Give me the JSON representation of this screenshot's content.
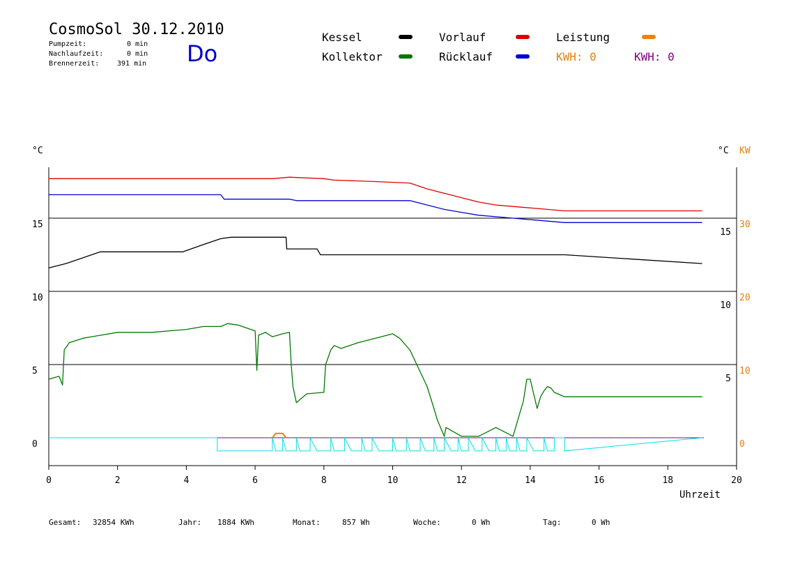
{
  "header": {
    "title": "CosmoSol 30.12.2010",
    "day": "Do",
    "stats": [
      {
        "label": "Pumpzeit:",
        "value": "0 min"
      },
      {
        "label": "Nachlaufzeit:",
        "value": "0 min"
      },
      {
        "label": "Brennerzeit:",
        "value": "391 min"
      }
    ]
  },
  "legend": {
    "kessel": {
      "label": "Kessel",
      "color": "#000000"
    },
    "vorlauf": {
      "label": "Vorlauf",
      "color": "#e00000"
    },
    "leistung": {
      "label": "Leistung",
      "color": "#f08010"
    },
    "kollektor": {
      "label": "Kollektor",
      "color": "#007800"
    },
    "ruecklauf": {
      "label": "Rücklauf",
      "color": "#0000d8"
    },
    "kwh1": {
      "label": "KWH: 0",
      "color": "#e08010"
    },
    "kwh2": {
      "label": "KWH: 0",
      "color": "#800080"
    }
  },
  "footer": [
    {
      "label": "Gesamt:",
      "value": "32854 KWh"
    },
    {
      "label": "Jahr:",
      "value": "1884 KWh"
    },
    {
      "label": "Monat:",
      "value": "857 Wh"
    },
    {
      "label": "Woche:",
      "value": "0 Wh"
    },
    {
      "label": "Tag:",
      "value": "0 Wh"
    }
  ],
  "chart_data": {
    "type": "line",
    "xlabel": "Uhrzeit",
    "xlim": [
      0,
      20
    ],
    "xticks": [
      0,
      2,
      4,
      6,
      8,
      10,
      12,
      14,
      16,
      18,
      20
    ],
    "left_axis": {
      "unit": "°C",
      "ticks": [
        0,
        5,
        10,
        15
      ],
      "range": [
        -2,
        18.5
      ]
    },
    "right_axis_inner": {
      "ticks": [
        5,
        10,
        15
      ]
    },
    "right_axis_kw": {
      "unit": "°C",
      "unit2": "KW",
      "ticks": [
        0,
        10,
        20,
        30
      ]
    },
    "grid_y": [
      0,
      5,
      10,
      15
    ],
    "series": [
      {
        "name": "Vorlauf",
        "color": "#e00000",
        "x": [
          0,
          6.5,
          7,
          8,
          8.3,
          9.5,
          10.5,
          11,
          11.5,
          12,
          12.5,
          13,
          13.5,
          14,
          14.5,
          15,
          19
        ],
        "y": [
          17.7,
          17.7,
          17.8,
          17.7,
          17.6,
          17.5,
          17.4,
          17.0,
          16.7,
          16.4,
          16.1,
          15.9,
          15.8,
          15.7,
          15.6,
          15.5,
          15.5
        ]
      },
      {
        "name": "Rücklauf",
        "color": "#0000d8",
        "x": [
          0,
          5,
          5.1,
          7,
          7.2,
          10.5,
          11,
          11.5,
          12,
          12.5,
          13,
          13.5,
          14,
          14.5,
          15,
          19
        ],
        "y": [
          16.6,
          16.6,
          16.3,
          16.3,
          16.2,
          16.2,
          15.9,
          15.6,
          15.4,
          15.2,
          15.1,
          15.0,
          14.9,
          14.8,
          14.7,
          14.7
        ]
      },
      {
        "name": "Kessel",
        "color": "#000000",
        "x": [
          0,
          0.5,
          1,
          1.5,
          3.9,
          4.5,
          5,
          5.3,
          6.9,
          6.92,
          7.8,
          7.9,
          15,
          17,
          19
        ],
        "y": [
          11.6,
          11.9,
          12.3,
          12.7,
          12.7,
          13.2,
          13.6,
          13.7,
          13.7,
          12.9,
          12.9,
          12.5,
          12.5,
          12.2,
          11.9
        ]
      },
      {
        "name": "Kollektor",
        "color": "#007800",
        "x": [
          0,
          0.3,
          0.4,
          0.45,
          0.6,
          1,
          1.5,
          2,
          3,
          4,
          4.5,
          5,
          5.2,
          5.5,
          6,
          6.05,
          6.1,
          6.3,
          6.5,
          6.8,
          7.0,
          7.05,
          7.1,
          7.2,
          7.5,
          8.0,
          8.05,
          8.2,
          8.3,
          8.5,
          9,
          9.5,
          10,
          10.2,
          10.5,
          10.8,
          11,
          11.2,
          11.3,
          11.5,
          11.55,
          12,
          12.5,
          13,
          13.5,
          13.8,
          13.9,
          14,
          14.1,
          14.2,
          14.3,
          14.4,
          14.5,
          14.6,
          14.7,
          14.9,
          15,
          19
        ],
        "y": [
          4.0,
          4.2,
          3.6,
          6.0,
          6.5,
          6.8,
          7.0,
          7.2,
          7.2,
          7.4,
          7.6,
          7.6,
          7.8,
          7.7,
          7.3,
          4.6,
          7.0,
          7.2,
          6.9,
          7.1,
          7.2,
          5.0,
          3.5,
          2.4,
          3.0,
          3.1,
          5.0,
          6.0,
          6.3,
          6.1,
          6.5,
          6.8,
          7.1,
          6.8,
          6.0,
          4.5,
          3.5,
          2.0,
          1.2,
          0.1,
          0.7,
          0.1,
          0.1,
          0.7,
          0.1,
          2.5,
          4.0,
          4.0,
          3.0,
          2.0,
          2.8,
          3.2,
          3.5,
          3.4,
          3.1,
          2.9,
          2.8,
          2.8
        ]
      },
      {
        "name": "Leistung",
        "color": "#f08010",
        "x": [
          6.5,
          6.6,
          6.75,
          6.8,
          6.9
        ],
        "y": [
          0,
          0.3,
          0.3,
          0.3,
          0
        ]
      }
    ],
    "status_trace": {
      "color": "#00e0e0",
      "start": 4.9,
      "end": 15.0,
      "ramp_end": 19,
      "pulses_x": [
        [
          4.9,
          6.5
        ],
        [
          6.6,
          6.8
        ],
        [
          6.9,
          7.2
        ],
        [
          7.3,
          7.6
        ],
        [
          7.8,
          8.2
        ],
        [
          8.3,
          8.6
        ],
        [
          8.8,
          9.1
        ],
        [
          9.2,
          9.4
        ],
        [
          9.6,
          10.0
        ],
        [
          10.1,
          10.4
        ],
        [
          10.5,
          10.8
        ],
        [
          10.95,
          11.2
        ],
        [
          11.3,
          11.5
        ],
        [
          11.7,
          11.9
        ],
        [
          12.0,
          12.2
        ],
        [
          12.4,
          12.6
        ],
        [
          12.8,
          13.0
        ],
        [
          13.1,
          13.3
        ],
        [
          13.4,
          13.6
        ],
        [
          13.7,
          13.9
        ],
        [
          14.1,
          14.4
        ],
        [
          14.5,
          14.7
        ]
      ],
      "depth": -0.9
    }
  }
}
